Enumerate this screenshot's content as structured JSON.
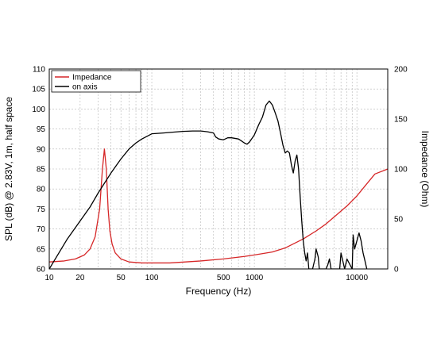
{
  "chart_data": {
    "type": "line",
    "title": "",
    "xlabel": "Frequency (Hz)",
    "ylabel": "SPL (dB) @ 2.83V, 1m, half space",
    "y2label": "Impedance (Ohm)",
    "x_scale": "log",
    "xlim": [
      10,
      20000
    ],
    "ylim": [
      60,
      110
    ],
    "y2lim": [
      0,
      200
    ],
    "grid": true,
    "legend_position": "top-left",
    "x_tick_labels": [
      "10",
      "20",
      "50",
      "100",
      "500",
      "1000",
      "10000"
    ],
    "x_tick_values": [
      10,
      20,
      50,
      100,
      500,
      1000,
      10000
    ],
    "y_tick_labels": [
      "60",
      "65",
      "70",
      "75",
      "80",
      "85",
      "90",
      "95",
      "100",
      "105",
      "110"
    ],
    "y2_tick_labels": [
      "0",
      "50",
      "100",
      "150",
      "200"
    ],
    "series": [
      {
        "name": "Impedance",
        "axis": "right",
        "color": "#d62728",
        "x": [
          10,
          14,
          18,
          22,
          25,
          28,
          31,
          33,
          34.5,
          36,
          37.5,
          39,
          41,
          44,
          50,
          60,
          80,
          100,
          150,
          300,
          500,
          800,
          1000,
          1500,
          2000,
          3000,
          4000,
          5000,
          6000,
          8000,
          10000,
          12000,
          15000,
          20000
        ],
        "y": [
          7,
          8,
          10,
          14,
          20,
          32,
          60,
          100,
          120,
          100,
          60,
          38,
          25,
          16,
          10,
          7,
          6,
          6,
          6,
          8,
          10,
          12.5,
          14,
          17,
          21,
          30,
          38,
          45,
          52,
          63,
          73,
          83,
          95,
          100
        ]
      },
      {
        "name": "on axis",
        "axis": "left",
        "color": "#000000",
        "x": [
          10,
          15,
          20,
          25,
          30,
          40,
          50,
          60,
          70,
          80,
          100,
          130,
          160,
          200,
          250,
          300,
          350,
          400,
          420,
          450,
          500,
          550,
          600,
          700,
          750,
          800,
          850,
          900,
          1000,
          1100,
          1200,
          1300,
          1400,
          1500,
          1600,
          1700,
          1800,
          1900,
          2000,
          2100,
          2200,
          2300,
          2400,
          2500,
          2600,
          2700,
          2800,
          2900,
          3000,
          3100,
          3200,
          3300,
          3400,
          3600,
          3700,
          3900,
          4000,
          4200,
          4300,
          4400,
          4600,
          4700,
          5000,
          5200,
          5400,
          5600,
          6000,
          6300,
          6800,
          7000,
          7600,
          8000,
          9000,
          9200,
          9500,
          10000,
          10500,
          11000,
          11500,
          12000,
          12500
        ],
        "y": [
          60,
          67.5,
          72,
          75.5,
          79,
          84,
          87.5,
          90,
          91.5,
          92.5,
          93.8,
          94,
          94.2,
          94.4,
          94.5,
          94.5,
          94.3,
          94,
          93,
          92.5,
          92.3,
          92.8,
          92.8,
          92.5,
          92,
          91.5,
          91.2,
          91.8,
          93.5,
          96,
          98,
          101,
          102,
          101,
          99,
          97,
          94,
          91,
          89,
          89.5,
          89,
          86,
          84,
          87,
          88.5,
          85,
          78,
          72,
          67,
          64,
          62,
          64,
          60,
          60,
          60,
          62.5,
          65,
          63,
          60,
          60,
          60,
          60,
          60,
          61,
          62.5,
          60,
          60,
          60,
          60,
          64,
          60,
          62.5,
          60,
          68.5,
          65,
          67,
          69,
          67,
          64,
          62,
          60
        ]
      }
    ]
  }
}
